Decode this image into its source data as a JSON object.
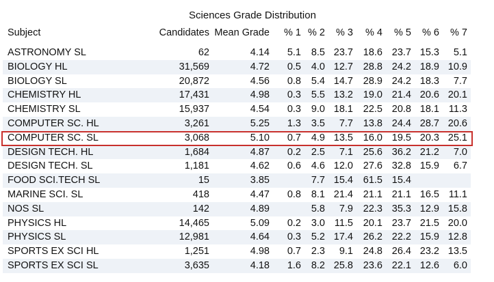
{
  "title": "Sciences Grade Distribution",
  "columns": [
    "Subject",
    "Candidates",
    "Mean Grade",
    "% 1",
    "% 2",
    "% 3",
    "% 4",
    "% 5",
    "% 6",
    "% 7"
  ],
  "rows": [
    {
      "subject": "ASTRONOMY SL",
      "candidates": "62",
      "mean": "4.14",
      "p1": "5.1",
      "p2": "8.5",
      "p3": "23.7",
      "p4": "18.6",
      "p5": "23.7",
      "p6": "15.3",
      "p7": "5.1"
    },
    {
      "subject": "BIOLOGY HL",
      "candidates": "31,569",
      "mean": "4.72",
      "p1": "0.5",
      "p2": "4.0",
      "p3": "12.7",
      "p4": "28.8",
      "p5": "24.2",
      "p6": "18.9",
      "p7": "10.9"
    },
    {
      "subject": "BIOLOGY SL",
      "candidates": "20,872",
      "mean": "4.56",
      "p1": "0.8",
      "p2": "5.4",
      "p3": "14.7",
      "p4": "28.9",
      "p5": "24.2",
      "p6": "18.3",
      "p7": "7.7"
    },
    {
      "subject": "CHEMISTRY HL",
      "candidates": "17,431",
      "mean": "4.98",
      "p1": "0.3",
      "p2": "5.5",
      "p3": "13.2",
      "p4": "19.0",
      "p5": "21.4",
      "p6": "20.6",
      "p7": "20.1"
    },
    {
      "subject": "CHEMISTRY SL",
      "candidates": "15,937",
      "mean": "4.54",
      "p1": "0.3",
      "p2": "9.0",
      "p3": "18.1",
      "p4": "22.5",
      "p5": "20.8",
      "p6": "18.1",
      "p7": "11.3"
    },
    {
      "subject": "COMPUTER SC. HL",
      "candidates": "3,261",
      "mean": "5.25",
      "p1": "1.3",
      "p2": "3.5",
      "p3": "7.7",
      "p4": "13.8",
      "p5": "24.4",
      "p6": "28.7",
      "p7": "20.6"
    },
    {
      "subject": "COMPUTER SC. SL",
      "candidates": "3,068",
      "mean": "5.10",
      "p1": "0.7",
      "p2": "4.9",
      "p3": "13.5",
      "p4": "16.0",
      "p5": "19.5",
      "p6": "20.3",
      "p7": "25.1"
    },
    {
      "subject": "DESIGN TECH. HL",
      "candidates": "1,684",
      "mean": "4.87",
      "p1": "0.2",
      "p2": "2.5",
      "p3": "7.1",
      "p4": "25.6",
      "p5": "36.2",
      "p6": "21.2",
      "p7": "7.0"
    },
    {
      "subject": "DESIGN TECH. SL",
      "candidates": "1,181",
      "mean": "4.62",
      "p1": "0.6",
      "p2": "4.6",
      "p3": "12.0",
      "p4": "27.6",
      "p5": "32.8",
      "p6": "15.9",
      "p7": "6.7"
    },
    {
      "subject": "FOOD SCI.TECH SL",
      "candidates": "15",
      "mean": "3.85",
      "p1": "",
      "p2": "7.7",
      "p3": "15.4",
      "p4": "61.5",
      "p5": "15.4",
      "p6": "",
      "p7": ""
    },
    {
      "subject": "MARINE SCI. SL",
      "candidates": "418",
      "mean": "4.47",
      "p1": "0.8",
      "p2": "8.1",
      "p3": "21.4",
      "p4": "21.1",
      "p5": "21.1",
      "p6": "16.5",
      "p7": "11.1"
    },
    {
      "subject": "NOS SL",
      "candidates": "142",
      "mean": "4.89",
      "p1": "",
      "p2": "5.8",
      "p3": "7.9",
      "p4": "22.3",
      "p5": "35.3",
      "p6": "12.9",
      "p7": "15.8"
    },
    {
      "subject": "PHYSICS HL",
      "candidates": "14,465",
      "mean": "5.09",
      "p1": "0.2",
      "p2": "3.0",
      "p3": "11.5",
      "p4": "20.1",
      "p5": "23.7",
      "p6": "21.5",
      "p7": "20.0"
    },
    {
      "subject": "PHYSICS SL",
      "candidates": "12,981",
      "mean": "4.64",
      "p1": "0.3",
      "p2": "5.2",
      "p3": "17.4",
      "p4": "26.2",
      "p5": "22.2",
      "p6": "15.9",
      "p7": "12.8"
    },
    {
      "subject": "SPORTS EX SCI HL",
      "candidates": "1,251",
      "mean": "4.98",
      "p1": "0.7",
      "p2": "2.3",
      "p3": "9.1",
      "p4": "24.8",
      "p5": "26.4",
      "p6": "23.2",
      "p7": "13.5"
    },
    {
      "subject": "SPORTS EX SCI SL",
      "candidates": "3,635",
      "mean": "4.18",
      "p1": "1.6",
      "p2": "8.2",
      "p3": "25.8",
      "p4": "23.6",
      "p5": "22.1",
      "p6": "12.6",
      "p7": "6.0"
    }
  ],
  "highlight_row": "COMPUTER SC. SL",
  "colors": {
    "stripe": "#eef2f7",
    "highlight": "#c8302c",
    "text": "#111111"
  }
}
